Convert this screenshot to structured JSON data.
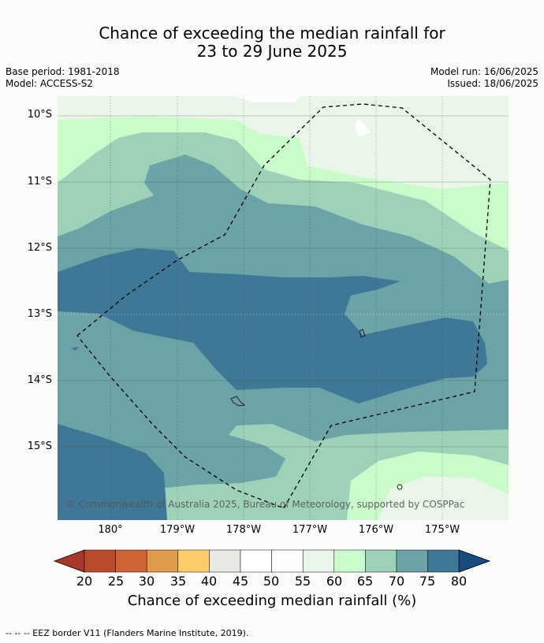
{
  "title": {
    "line1": "Chance of exceeding the median rainfall for",
    "line2": "23 to 29 June 2025"
  },
  "meta": {
    "base_period": "Base period: 1981-2018",
    "model": "Model: ACCESS-S2",
    "model_run": "Model run: 16/06/2025",
    "issued": "Issued: 18/06/2025"
  },
  "map": {
    "lat_labels": [
      "10°S",
      "11°S",
      "12°S",
      "13°S",
      "14°S",
      "15°S"
    ],
    "lon_labels": [
      "180°",
      "179°W",
      "178°W",
      "177°W",
      "176°W",
      "175°W"
    ],
    "copyright": "© Commonwealth of Australia 2025, Bureau of Meteorology, supported by COSPPac",
    "eez_line": "dashed black"
  },
  "colorbar": {
    "ticks": [
      "20",
      "25",
      "30",
      "35",
      "40",
      "45",
      "50",
      "55",
      "60",
      "65",
      "70",
      "75",
      "80"
    ],
    "colors": [
      "#a8392a",
      "#b94b2b",
      "#cf6435",
      "#e09a4b",
      "#fdcd6b",
      "#e9e8e4",
      "#ffffff",
      "#fdfefd",
      "#ebf6ea",
      "#c9fcca",
      "#9dd2b9",
      "#6ba3a6",
      "#3e7896",
      "#174d7e"
    ],
    "label": "Chance of exceeding median rainfall (%)"
  },
  "footer": "-- -- -- EEZ border V11 (Flanders Marine Institute, 2019)."
}
